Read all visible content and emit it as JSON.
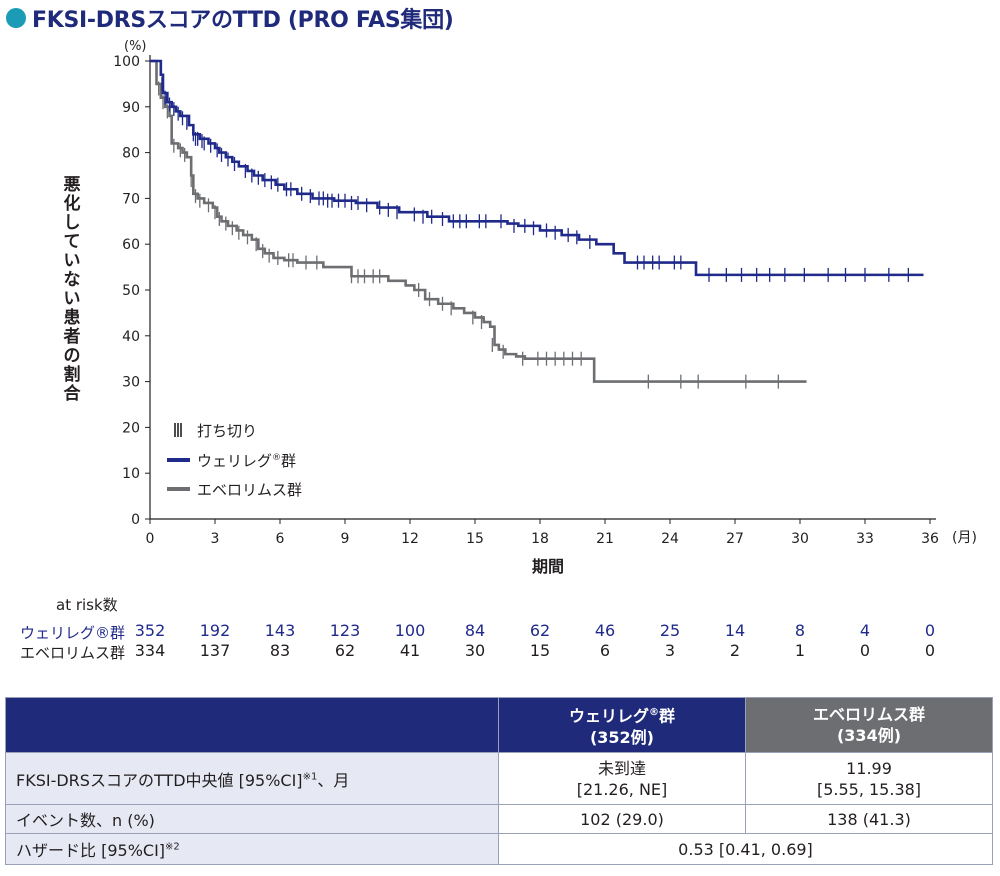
{
  "title": "FKSI-DRSスコアのTTD (PRO FAS集団)",
  "colors": {
    "accent_dot": "#1b9bb6",
    "title": "#1f2a7a",
    "welireg": "#1f2a8a",
    "everolimus": "#6d6e71"
  },
  "chart_data": {
    "type": "line",
    "subtype": "kaplan-meier step",
    "ylabel": "悪化していない患者の割合",
    "yunit": "(%)",
    "xlabel": "期間",
    "xunit": "(月)",
    "xlim": [
      0,
      36
    ],
    "ylim": [
      0,
      100
    ],
    "xticks": [
      0,
      3,
      6,
      9,
      12,
      15,
      18,
      21,
      24,
      27,
      30,
      33,
      36
    ],
    "yticks": [
      0,
      10,
      20,
      30,
      40,
      50,
      60,
      70,
      80,
      90,
      100
    ],
    "legend": {
      "censor": "打ち切り",
      "welireg": "ウェリレグ",
      "welireg_suffix": "群",
      "everolimus": "エベロリムス群"
    },
    "series": [
      {
        "name": "ウェリレグ群",
        "color": "#1f2a8a",
        "steps": [
          [
            0,
            100
          ],
          [
            0.5,
            97
          ],
          [
            0.6,
            93
          ],
          [
            0.8,
            91
          ],
          [
            1.0,
            90
          ],
          [
            1.2,
            89
          ],
          [
            1.4,
            88
          ],
          [
            1.8,
            86
          ],
          [
            2.0,
            84
          ],
          [
            2.3,
            83
          ],
          [
            2.7,
            82
          ],
          [
            3.0,
            81
          ],
          [
            3.2,
            80
          ],
          [
            3.5,
            79
          ],
          [
            3.8,
            78
          ],
          [
            4.1,
            77
          ],
          [
            4.5,
            76
          ],
          [
            4.8,
            75
          ],
          [
            5.2,
            74
          ],
          [
            5.8,
            73
          ],
          [
            6.2,
            72
          ],
          [
            6.8,
            71
          ],
          [
            7.5,
            70
          ],
          [
            8.5,
            69.5
          ],
          [
            9.5,
            69
          ],
          [
            10.5,
            68
          ],
          [
            11.5,
            67
          ],
          [
            12.8,
            66
          ],
          [
            13.8,
            65
          ],
          [
            16.0,
            65
          ],
          [
            16.5,
            64.5
          ],
          [
            17.0,
            64
          ],
          [
            18.0,
            63
          ],
          [
            19.0,
            62
          ],
          [
            19.8,
            61
          ],
          [
            20.6,
            60
          ],
          [
            21.4,
            58
          ],
          [
            21.9,
            56
          ],
          [
            23.0,
            56
          ],
          [
            24.9,
            56
          ],
          [
            25.2,
            53.3
          ],
          [
            35.7,
            53.3
          ]
        ],
        "censors": [
          [
            0.55,
            95
          ],
          [
            0.7,
            92
          ],
          [
            0.9,
            90.5
          ],
          [
            1.1,
            89.5
          ],
          [
            1.3,
            88.5
          ],
          [
            1.5,
            87.5
          ],
          [
            1.7,
            86.5
          ],
          [
            2.0,
            84
          ],
          [
            2.1,
            83
          ],
          [
            2.2,
            83
          ],
          [
            2.4,
            82.5
          ],
          [
            2.5,
            82
          ],
          [
            2.8,
            81.5
          ],
          [
            3.1,
            80.5
          ],
          [
            3.3,
            79.5
          ],
          [
            3.6,
            78.5
          ],
          [
            3.9,
            77.5
          ],
          [
            4.4,
            76
          ],
          [
            4.7,
            75
          ],
          [
            5.0,
            74.5
          ],
          [
            5.3,
            74
          ],
          [
            5.6,
            73.5
          ],
          [
            5.9,
            73
          ],
          [
            6.3,
            72
          ],
          [
            6.5,
            72
          ],
          [
            7.0,
            71
          ],
          [
            7.4,
            70.5
          ],
          [
            7.8,
            70
          ],
          [
            8.0,
            70
          ],
          [
            8.2,
            69.5
          ],
          [
            8.4,
            69.5
          ],
          [
            8.7,
            69.5
          ],
          [
            9.0,
            69.5
          ],
          [
            9.3,
            69
          ],
          [
            9.6,
            69
          ],
          [
            10.0,
            68.5
          ],
          [
            10.6,
            68
          ],
          [
            11.0,
            67.5
          ],
          [
            11.4,
            67
          ],
          [
            12.2,
            66.5
          ],
          [
            12.6,
            66
          ],
          [
            13.0,
            66
          ],
          [
            13.5,
            65.5
          ],
          [
            14.0,
            65
          ],
          [
            14.3,
            65
          ],
          [
            14.6,
            65
          ],
          [
            15.2,
            65
          ],
          [
            15.5,
            65
          ],
          [
            16.2,
            65
          ],
          [
            16.8,
            64
          ],
          [
            17.3,
            64
          ],
          [
            17.7,
            63.5
          ],
          [
            18.3,
            63
          ],
          [
            18.7,
            62.5
          ],
          [
            19.3,
            62
          ],
          [
            19.7,
            61.5
          ],
          [
            20.3,
            60.5
          ],
          [
            22.5,
            56
          ],
          [
            22.8,
            56
          ],
          [
            23.2,
            56
          ],
          [
            23.5,
            56
          ],
          [
            24.2,
            56
          ],
          [
            24.5,
            56
          ],
          [
            25.8,
            53.3
          ],
          [
            26.6,
            53.3
          ],
          [
            27.3,
            53.3
          ],
          [
            28.0,
            53.3
          ],
          [
            28.6,
            53.3
          ],
          [
            29.3,
            53.3
          ],
          [
            30.2,
            53.3
          ],
          [
            31.3,
            53.3
          ],
          [
            32.1,
            53.3
          ],
          [
            33.0,
            53.3
          ],
          [
            34.1,
            53.3
          ],
          [
            35.0,
            53.3
          ]
        ]
      },
      {
        "name": "エベロリムス群",
        "color": "#6d6e71",
        "steps": [
          [
            0,
            100
          ],
          [
            0.3,
            95
          ],
          [
            0.5,
            92
          ],
          [
            0.7,
            90
          ],
          [
            0.9,
            88
          ],
          [
            1.0,
            82
          ],
          [
            1.3,
            81
          ],
          [
            1.5,
            80
          ],
          [
            1.7,
            79
          ],
          [
            1.9,
            75
          ],
          [
            2.0,
            71
          ],
          [
            2.2,
            70
          ],
          [
            2.5,
            69
          ],
          [
            2.9,
            68
          ],
          [
            3.1,
            66
          ],
          [
            3.3,
            65
          ],
          [
            3.6,
            64
          ],
          [
            4.0,
            63
          ],
          [
            4.3,
            62
          ],
          [
            4.7,
            61
          ],
          [
            5.0,
            59
          ],
          [
            5.3,
            58
          ],
          [
            5.7,
            57
          ],
          [
            6.2,
            56.5
          ],
          [
            6.8,
            56
          ],
          [
            8.0,
            55
          ],
          [
            9.3,
            53
          ],
          [
            11.0,
            52
          ],
          [
            11.8,
            51
          ],
          [
            12.2,
            50
          ],
          [
            12.7,
            48
          ],
          [
            13.3,
            47
          ],
          [
            14.0,
            46
          ],
          [
            14.5,
            45
          ],
          [
            15.0,
            44
          ],
          [
            15.4,
            43
          ],
          [
            15.7,
            42
          ],
          [
            15.9,
            38
          ],
          [
            16.1,
            37
          ],
          [
            16.4,
            36
          ],
          [
            16.9,
            35.5
          ],
          [
            17.3,
            35
          ],
          [
            20.3,
            35
          ],
          [
            20.5,
            30
          ],
          [
            30.3,
            30
          ]
        ],
        "censors": [
          [
            0.4,
            94
          ],
          [
            0.6,
            91
          ],
          [
            0.8,
            89
          ],
          [
            1.1,
            81.5
          ],
          [
            1.4,
            80.5
          ],
          [
            1.6,
            79.5
          ],
          [
            1.9,
            74
          ],
          [
            2.1,
            70.5
          ],
          [
            2.3,
            69.5
          ],
          [
            2.7,
            68.5
          ],
          [
            3.0,
            67
          ],
          [
            3.2,
            65.5
          ],
          [
            3.5,
            64.5
          ],
          [
            3.8,
            63.5
          ],
          [
            4.1,
            62.5
          ],
          [
            4.5,
            61.5
          ],
          [
            4.9,
            60
          ],
          [
            5.2,
            58.5
          ],
          [
            5.5,
            57.5
          ],
          [
            5.9,
            57
          ],
          [
            6.4,
            56.5
          ],
          [
            6.6,
            56.5
          ],
          [
            7.2,
            56
          ],
          [
            7.7,
            56
          ],
          [
            9.3,
            53
          ],
          [
            9.6,
            53
          ],
          [
            9.9,
            53
          ],
          [
            10.3,
            53
          ],
          [
            10.6,
            53
          ],
          [
            12.4,
            50
          ],
          [
            12.9,
            48
          ],
          [
            13.5,
            47
          ],
          [
            13.9,
            46
          ],
          [
            14.9,
            44
          ],
          [
            15.3,
            43
          ],
          [
            15.8,
            38
          ],
          [
            16.3,
            36.5
          ],
          [
            17.2,
            35
          ],
          [
            17.9,
            35
          ],
          [
            18.3,
            35
          ],
          [
            18.7,
            35
          ],
          [
            19.1,
            35
          ],
          [
            19.5,
            35
          ],
          [
            19.9,
            35
          ],
          [
            23.0,
            30
          ],
          [
            24.5,
            30
          ],
          [
            25.3,
            30
          ],
          [
            27.5,
            30
          ],
          [
            29.0,
            30
          ]
        ]
      }
    ]
  },
  "at_risk": {
    "header": "at risk数",
    "rows": [
      {
        "label": "ウェリレグ®群",
        "values": [
          "352",
          "192",
          "143",
          "123",
          "100",
          "84",
          "62",
          "46",
          "25",
          "14",
          "8",
          "4",
          "0"
        ]
      },
      {
        "label": "エベロリムス群",
        "values": [
          "334",
          "137",
          "83",
          "62",
          "41",
          "30",
          "15",
          "6",
          "3",
          "2",
          "1",
          "0",
          "0"
        ]
      }
    ]
  },
  "summary": {
    "col_welireg_line1": "ウェリレグ",
    "col_welireg_sup": "®",
    "col_welireg_line1b": "群",
    "col_welireg_line2": "(352例)",
    "col_everolimus_line1": "エベロリムス群",
    "col_everolimus_line2": "(334例)",
    "rows": {
      "median_label": "FKSI-DRSスコアのTTD中央値 [95%CI]",
      "median_note": "※1",
      "median_unit": "、月",
      "median_welireg_1": "未到達",
      "median_welireg_2": "[21.26, NE]",
      "median_everolimus_1": "11.99",
      "median_everolimus_2": "[5.55, 15.38]",
      "events_label": "イベント数、n (%)",
      "events_welireg": "102 (29.0)",
      "events_everolimus": "138 (41.3)",
      "hr_label": "ハザード比 [95%CI]",
      "hr_note": "※2",
      "hr_value": "0.53 [0.41, 0.69]"
    }
  }
}
